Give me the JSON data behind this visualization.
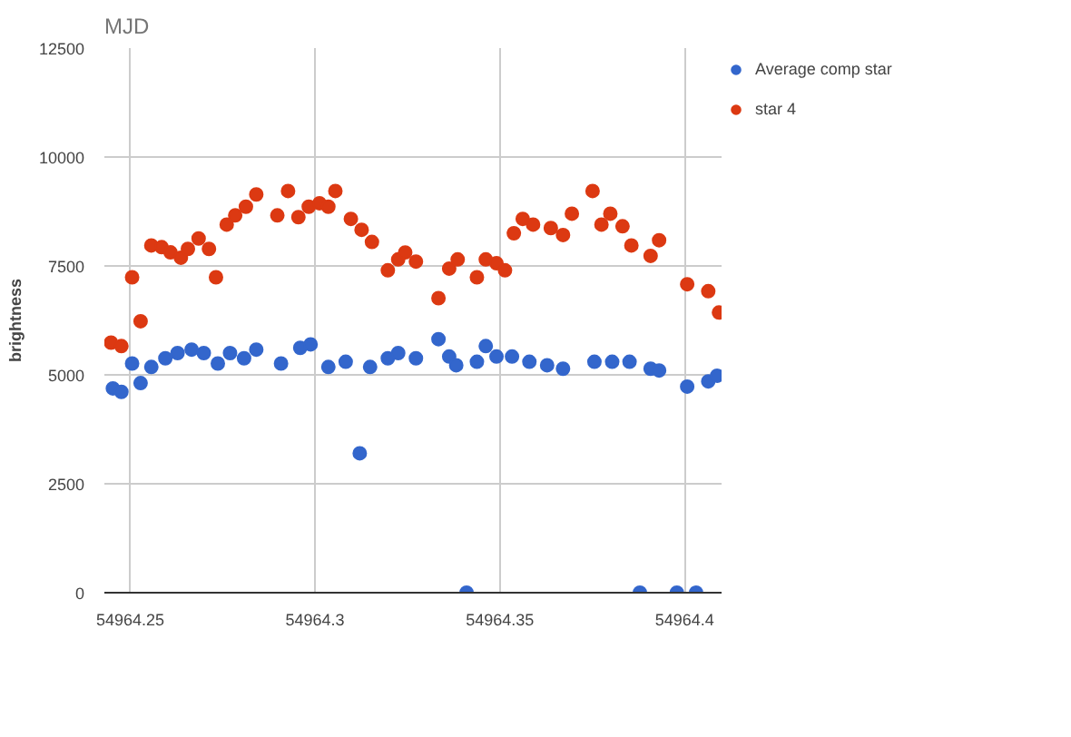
{
  "chart_data": {
    "type": "scatter",
    "title": "MJD",
    "ylabel": "brightness",
    "xlim": [
      54964.243,
      54964.41
    ],
    "xticks": [
      54964.25,
      54964.3,
      54964.35,
      54964.4
    ],
    "ylim": [
      0,
      12500
    ],
    "yticks": [
      0,
      2500,
      5000,
      7500,
      10000,
      12500
    ],
    "grid": true,
    "legend": "right",
    "marker": "circle",
    "series": [
      {
        "name": "Average comp star",
        "color": "#3366cc",
        "x": [
          54964.2453,
          54964.2476,
          54964.2505,
          54964.2528,
          54964.2557,
          54964.2595,
          54964.2628,
          54964.2666,
          54964.2699,
          54964.2737,
          54964.277,
          54964.2808,
          54964.2841,
          54964.2908,
          54964.296,
          54964.2988,
          54964.3036,
          54964.3083,
          54964.3121,
          54964.3149,
          54964.3197,
          54964.3225,
          54964.3273,
          54964.3334,
          54964.3363,
          54964.3382,
          54964.341,
          54964.3438,
          54964.3462,
          54964.3491,
          54964.3533,
          54964.358,
          54964.3628,
          54964.3671,
          54964.3756,
          54964.3804,
          54964.3851,
          54964.3879,
          54964.3908,
          54964.3931,
          54964.3979,
          54964.4007,
          54964.4031,
          54964.4064,
          54964.4088
        ],
        "values": [
          4690,
          4610,
          5260,
          4810,
          5180,
          5380,
          5500,
          5580,
          5500,
          5260,
          5500,
          5380,
          5580,
          5260,
          5620,
          5700,
          5180,
          5300,
          3200,
          5180,
          5380,
          5500,
          5380,
          5820,
          5420,
          5220,
          0,
          5300,
          5660,
          5420,
          5420,
          5300,
          5220,
          5140,
          5300,
          5300,
          5300,
          0,
          5140,
          5100,
          0,
          4730,
          0,
          4850,
          4980
        ]
      },
      {
        "name": "star 4",
        "color": "#dc3912",
        "x": [
          54964.2448,
          54964.2476,
          54964.2505,
          54964.2528,
          54964.2557,
          54964.2585,
          54964.2609,
          54964.2637,
          54964.2656,
          54964.2685,
          54964.2713,
          54964.2732,
          54964.2761,
          54964.2784,
          54964.2813,
          54964.2841,
          54964.2898,
          54964.2927,
          54964.2955,
          54964.2983,
          54964.3012,
          54964.3036,
          54964.3055,
          54964.3097,
          54964.3126,
          54964.3154,
          54964.3197,
          54964.3225,
          54964.3244,
          54964.3273,
          54964.3334,
          54964.3363,
          54964.3386,
          54964.3438,
          54964.3462,
          54964.3491,
          54964.3514,
          54964.3538,
          54964.3562,
          54964.359,
          54964.3638,
          54964.3671,
          54964.3695,
          54964.3751,
          54964.3775,
          54964.3799,
          54964.3832,
          54964.3856,
          54964.3908,
          54964.3931,
          54964.4007,
          54964.4064,
          54964.4093
        ],
        "values": [
          5740,
          5660,
          7240,
          6230,
          7970,
          7930,
          7810,
          7690,
          7890,
          8130,
          7890,
          7240,
          8450,
          8660,
          8860,
          9140,
          8660,
          9220,
          8620,
          8860,
          8940,
          8860,
          9220,
          8580,
          8330,
          8050,
          7400,
          7650,
          7810,
          7600,
          6760,
          7440,
          7650,
          7240,
          7650,
          7560,
          7400,
          8250,
          8580,
          8450,
          8370,
          8210,
          8700,
          9220,
          8450,
          8700,
          8410,
          7970,
          7730,
          8090,
          7080,
          6920,
          6430
        ]
      }
    ]
  }
}
